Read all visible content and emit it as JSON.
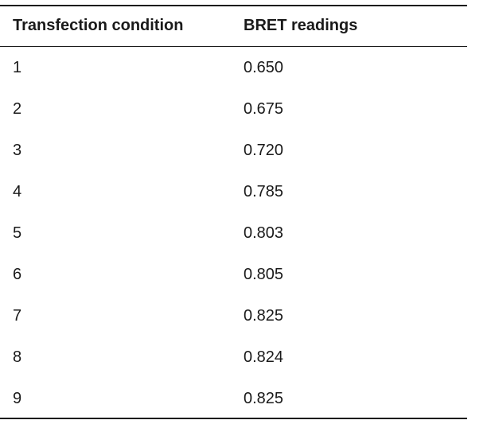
{
  "table": {
    "headers": {
      "condition": "Transfection condition",
      "bret": "BRET readings"
    },
    "rows": [
      {
        "condition": "1",
        "bret": "0.650"
      },
      {
        "condition": "2",
        "bret": "0.675"
      },
      {
        "condition": "3",
        "bret": "0.720"
      },
      {
        "condition": "4",
        "bret": "0.785"
      },
      {
        "condition": "5",
        "bret": "0.803"
      },
      {
        "condition": "6",
        "bret": "0.805"
      },
      {
        "condition": "7",
        "bret": "0.825"
      },
      {
        "condition": "8",
        "bret": "0.824"
      },
      {
        "condition": "9",
        "bret": "0.825"
      }
    ]
  }
}
